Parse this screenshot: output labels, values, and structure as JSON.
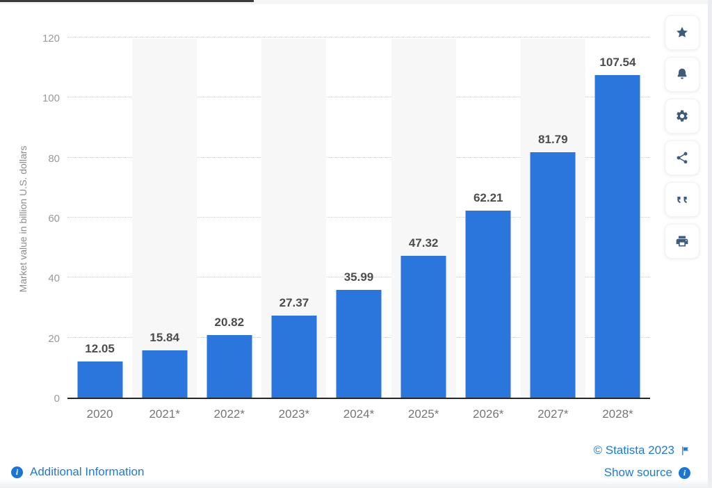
{
  "chart_data": {
    "type": "bar",
    "categories": [
      "2020",
      "2021*",
      "2022*",
      "2023*",
      "2024*",
      "2025*",
      "2026*",
      "2027*",
      "2028*"
    ],
    "values": [
      12.05,
      15.84,
      20.82,
      27.37,
      35.99,
      47.32,
      62.21,
      81.79,
      107.54
    ],
    "title": "",
    "xlabel": "",
    "ylabel": "Market value in billion U.S. dollars",
    "ylim": [
      0,
      120
    ],
    "yticks": [
      0,
      20,
      40,
      60,
      80,
      100,
      120
    ],
    "grid": "horizontal-dotted",
    "legend": "none",
    "bar_color": "#2a76dd",
    "stripe_color": "#f7f7f7",
    "value_labels": [
      "12.05",
      "15.84",
      "20.82",
      "27.37",
      "35.99",
      "47.32",
      "62.21",
      "81.79",
      "107.54"
    ]
  },
  "toolbar": {
    "icons": [
      "star-icon",
      "bell-icon",
      "gear-icon",
      "share-icon",
      "quote-icon",
      "printer-icon"
    ]
  },
  "footer": {
    "additional_information_label": "Additional Information",
    "copyright_label": "© Statista 2023",
    "show_source_label": "Show source"
  },
  "colors": {
    "bar": "#2a76dd",
    "link": "#1e7ad6",
    "toolbar_icon": "#3e5c7a",
    "axis": "#262626",
    "y_tick": "#9a9a9a",
    "x_tick": "#757575",
    "value_label": "#4c4c4c",
    "gridline": "#cfcfcf",
    "column_stripe": "#f7f7f7"
  }
}
